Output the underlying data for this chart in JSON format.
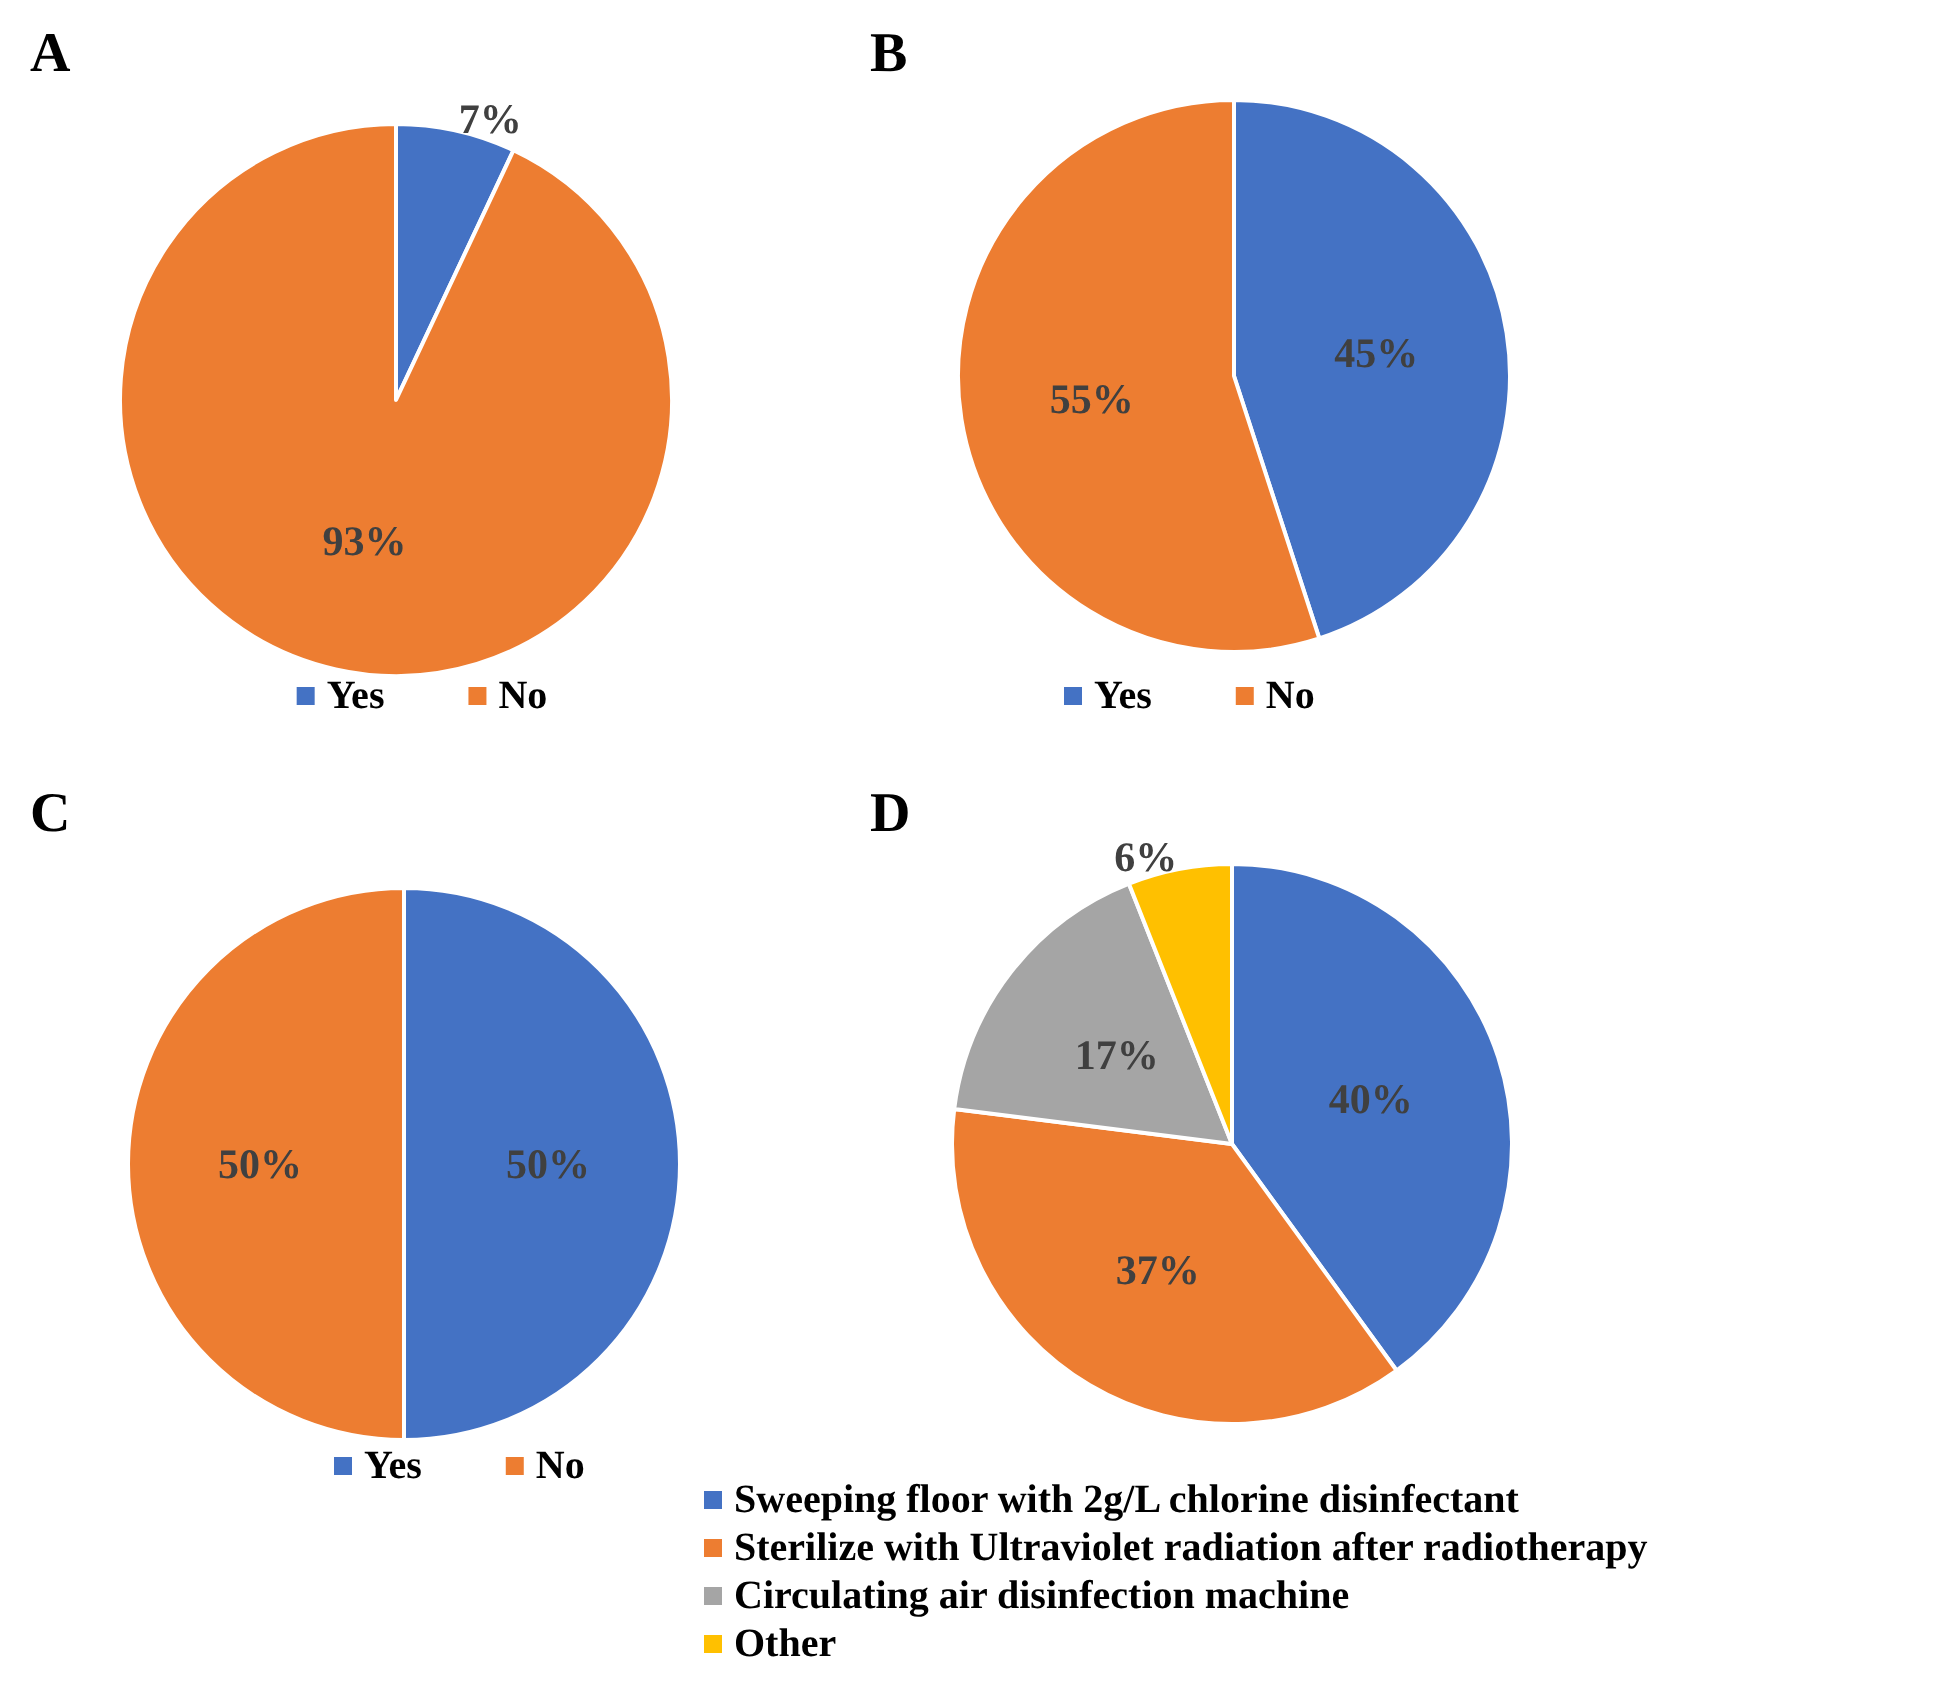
{
  "chart_data": [
    {
      "type": "pie",
      "title": "A",
      "categories": [
        "Yes",
        "No"
      ],
      "values": [
        7,
        93
      ],
      "colors": [
        "#4472c4",
        "#ed7d31"
      ],
      "value_labels": [
        "7%",
        "93%"
      ],
      "legend": "bottom"
    },
    {
      "type": "pie",
      "title": "B",
      "categories": [
        "Yes",
        "No"
      ],
      "values": [
        45,
        55
      ],
      "colors": [
        "#4472c4",
        "#ed7d31"
      ],
      "value_labels": [
        "45%",
        "55%"
      ],
      "legend": "bottom"
    },
    {
      "type": "pie",
      "title": "C",
      "categories": [
        "Yes",
        "No"
      ],
      "values": [
        50,
        50
      ],
      "colors": [
        "#4472c4",
        "#ed7d31"
      ],
      "value_labels": [
        "50%",
        "50%"
      ],
      "legend": "bottom"
    },
    {
      "type": "pie",
      "title": "D",
      "categories": [
        "Sweeping floor with 2g/L chlorine disinfectant",
        "Sterilize with Ultraviolet radiation after radiotherapy",
        "Circulating air disinfection machine",
        "Other"
      ],
      "values": [
        40,
        37,
        17,
        6
      ],
      "colors": [
        "#4472c4",
        "#ed7d31",
        "#a5a5a5",
        "#ffc000"
      ],
      "value_labels": [
        "40%",
        "37%",
        "17%",
        "6%"
      ],
      "legend": "bottom"
    }
  ]
}
